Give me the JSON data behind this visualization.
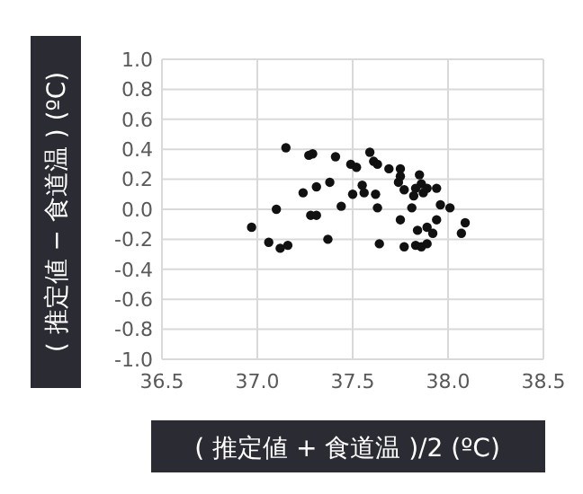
{
  "chart_data": {
    "type": "scatter",
    "xlabel": "( 推定値 + 食道温 )/2  (ºC)",
    "ylabel": "( 推定値 − 食道温 )  (ºC)",
    "xlim": [
      36.5,
      38.5
    ],
    "xticks": [
      {
        "value": 36.5,
        "label": "36.5"
      },
      {
        "value": 37,
        "label": "37.0"
      },
      {
        "value": 37.5,
        "label": "37.5"
      },
      {
        "value": 38,
        "label": "38.0"
      },
      {
        "value": 38.5,
        "label": "38.5"
      }
    ],
    "ylim": [
      -1,
      1
    ],
    "yticks": [
      {
        "value": -1,
        "label": "-1.0"
      },
      {
        "value": -0.8,
        "label": "-0.8"
      },
      {
        "value": -0.6,
        "label": "-0.6"
      },
      {
        "value": -0.4,
        "label": "-0.4"
      },
      {
        "value": -0.2,
        "label": "-0.2"
      },
      {
        "value": 0,
        "label": "0.0"
      },
      {
        "value": 0.2,
        "label": "0.2"
      },
      {
        "value": 0.4,
        "label": "0.4"
      },
      {
        "value": 0.6,
        "label": "0.6"
      },
      {
        "value": 0.8,
        "label": "0.8"
      },
      {
        "value": 1,
        "label": "1.0"
      }
    ],
    "grid": true,
    "marker": "circle",
    "series": [
      {
        "color": "#111111",
        "x": [
          37.15,
          37.27,
          37.29,
          37.41,
          37.49,
          37.52,
          37.59,
          37.61,
          37.63,
          37.69,
          37.75,
          37.75,
          37.74,
          37.85,
          37.38,
          37.31,
          37.24,
          37.55,
          37.56,
          37.5,
          37.62,
          37.77,
          37.82,
          37.86,
          37.87,
          37.89,
          37.94,
          37.83,
          37.44,
          37.63,
          37.81,
          37.96,
          38.01,
          37.1,
          37.28,
          37.31,
          36.97,
          37.75,
          37.94,
          37.84,
          37.89,
          37.92,
          38.09,
          38.07,
          37.06,
          37.37,
          37.64,
          37.12,
          37.16,
          37.77,
          37.83,
          37.86,
          37.89
        ],
        "values": [
          0.41,
          0.36,
          0.37,
          0.35,
          0.3,
          0.28,
          0.38,
          0.32,
          0.3,
          0.27,
          0.27,
          0.22,
          0.18,
          0.23,
          0.18,
          0.15,
          0.11,
          0.16,
          0.11,
          0.1,
          0.1,
          0.13,
          0.09,
          0.17,
          0.11,
          0.14,
          0.14,
          0.14,
          0.02,
          0.01,
          0.01,
          0.03,
          0.01,
          0,
          -0.04,
          -0.04,
          -0.12,
          -0.07,
          -0.07,
          -0.14,
          -0.12,
          -0.16,
          -0.09,
          -0.16,
          -0.22,
          -0.2,
          -0.23,
          -0.26,
          -0.24,
          -0.25,
          -0.24,
          -0.25,
          -0.23
        ]
      }
    ]
  }
}
